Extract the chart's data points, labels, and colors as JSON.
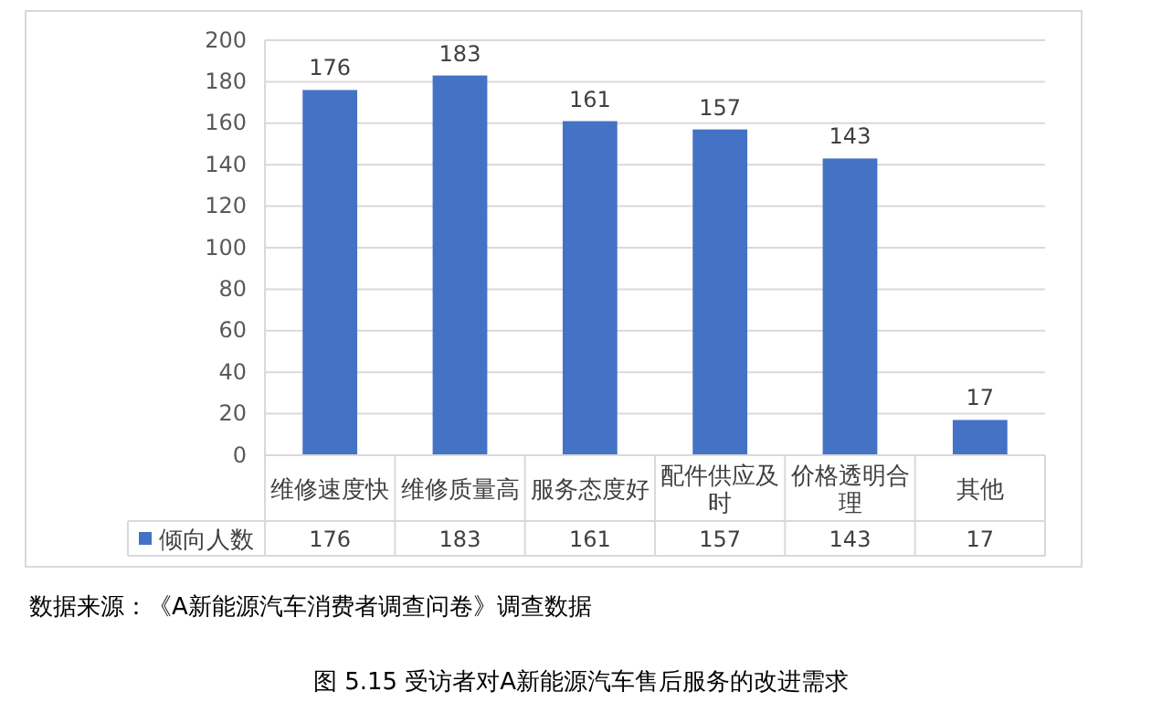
{
  "chart_data": {
    "type": "bar",
    "categories": [
      "维修速度快",
      "维修质量高",
      "服务态度好",
      "配件供应及时",
      "价格透明合理",
      "其他"
    ],
    "series": [
      {
        "name": "倾向人数",
        "color": "#4472c4",
        "values": [
          176,
          183,
          161,
          157,
          143,
          17
        ],
        "value_labels": [
          "176",
          "183",
          "161",
          "157",
          "143",
          "17"
        ]
      }
    ],
    "ylim": [
      0,
      200
    ],
    "yticks": [
      0,
      20,
      40,
      60,
      80,
      100,
      120,
      140,
      160,
      180,
      200
    ],
    "grid": "y",
    "legend": "bottom",
    "data_labels": true,
    "annotations": [
      "数据来源：《A新能源汽车消费者调查问卷》调查数据",
      "图 5.15   受访者对A新能源汽车售后服务的改进需求"
    ]
  }
}
